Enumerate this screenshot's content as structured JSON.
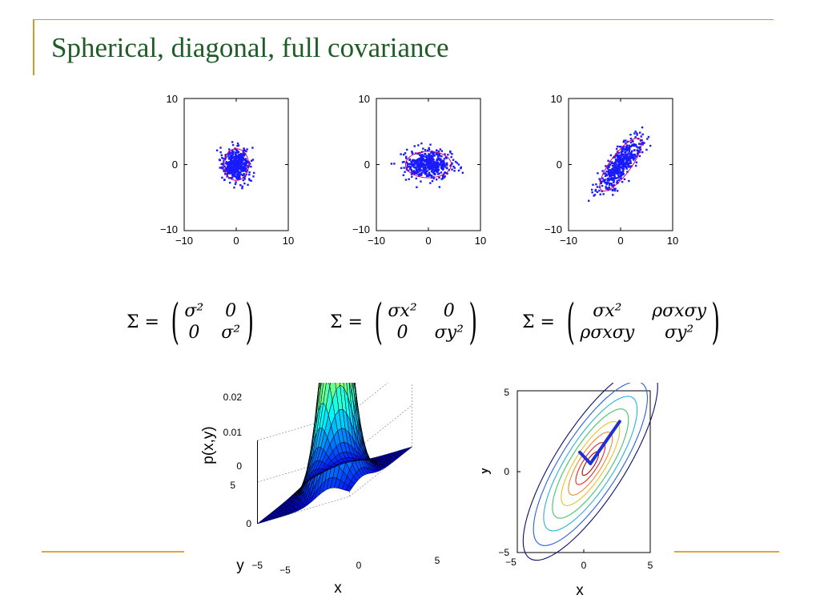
{
  "slide": {
    "title": "Spherical, diagonal, full covariance",
    "colors": {
      "title": "#1f5c28",
      "rule": "#cc9a2e",
      "points": "#1a1aff",
      "ellipse": "#d0006a"
    }
  },
  "formulas": [
    {
      "lhs": "Σ =",
      "cells": [
        "σ²",
        "0",
        "0",
        "σ²"
      ]
    },
    {
      "lhs": "Σ =",
      "cells": [
        "σx²",
        "0",
        "0",
        "σy²"
      ]
    },
    {
      "lhs": "Σ =",
      "cells": [
        "σx²",
        "ρσxσy",
        "ρσxσy",
        "σy²"
      ]
    }
  ],
  "chart_data": [
    {
      "type": "scatter",
      "title": "",
      "xlabel": "",
      "ylabel": "",
      "xlim": [
        -10,
        10
      ],
      "ylim": [
        -10,
        10
      ],
      "xticks": [
        "−10",
        "0",
        "10"
      ],
      "yticks": [
        "10",
        "0",
        "−10"
      ],
      "covariance": {
        "sx": 1.2,
        "sy": 1.2,
        "rho": 0
      },
      "mean": [
        0,
        0
      ],
      "n_points": 500
    },
    {
      "type": "scatter",
      "title": "",
      "xlabel": "",
      "ylabel": "",
      "xlim": [
        -10,
        10
      ],
      "ylim": [
        -10,
        10
      ],
      "xticks": [
        "−10",
        "0",
        "10"
      ],
      "yticks": [
        "10",
        "0",
        "−10"
      ],
      "covariance": {
        "sx": 2.2,
        "sy": 1.0,
        "rho": 0
      },
      "mean": [
        0,
        0
      ],
      "n_points": 500
    },
    {
      "type": "scatter",
      "title": "",
      "xlabel": "",
      "ylabel": "",
      "xlim": [
        -10,
        10
      ],
      "ylim": [
        -10,
        10
      ],
      "xticks": [
        "−10",
        "0",
        "10"
      ],
      "yticks": [
        "10",
        "0",
        "−10"
      ],
      "covariance": {
        "sx": 2.0,
        "sy": 2.0,
        "rho": 0.8
      },
      "mean": [
        0,
        0
      ],
      "n_points": 500
    },
    {
      "type": "surface",
      "title": "",
      "xlabel": "x",
      "ylabel": "y",
      "zlabel": "p(x,y)",
      "xlim": [
        -5,
        5
      ],
      "ylim": [
        -5,
        5
      ],
      "zlim": [
        0,
        0.02
      ],
      "xticks": [
        "−5",
        "0",
        "5"
      ],
      "yticks": [
        "5",
        "0",
        "−5"
      ],
      "zticks": [
        "0.02",
        "0.01",
        "0"
      ],
      "colormap": "jet"
    },
    {
      "type": "contour",
      "title": "",
      "xlabel": "x",
      "ylabel": "y",
      "xlim": [
        -5,
        5
      ],
      "ylim": [
        -5,
        5
      ],
      "xticks": [
        "−5",
        "0",
        "5"
      ],
      "yticks": [
        "5",
        "0",
        "−5"
      ],
      "covariance": {
        "sx": 2.2,
        "sy": 2.6,
        "rho": 0.8
      },
      "mean": [
        0.5,
        0.5
      ],
      "contour_colors": [
        "#0d0d6a",
        "#2a5fe0",
        "#2ab2d9",
        "#45c46a",
        "#e8c22a",
        "#f08a2a",
        "#e02a2a",
        "#a80a0a"
      ],
      "eigenvectors_drawn": true
    }
  ]
}
